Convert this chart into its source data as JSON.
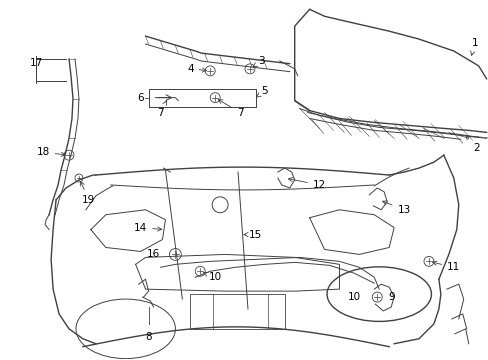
{
  "bg_color": "#ffffff",
  "line_color": "#404040",
  "label_color": "#000000",
  "fig_width": 4.89,
  "fig_height": 3.6,
  "dpi": 100
}
